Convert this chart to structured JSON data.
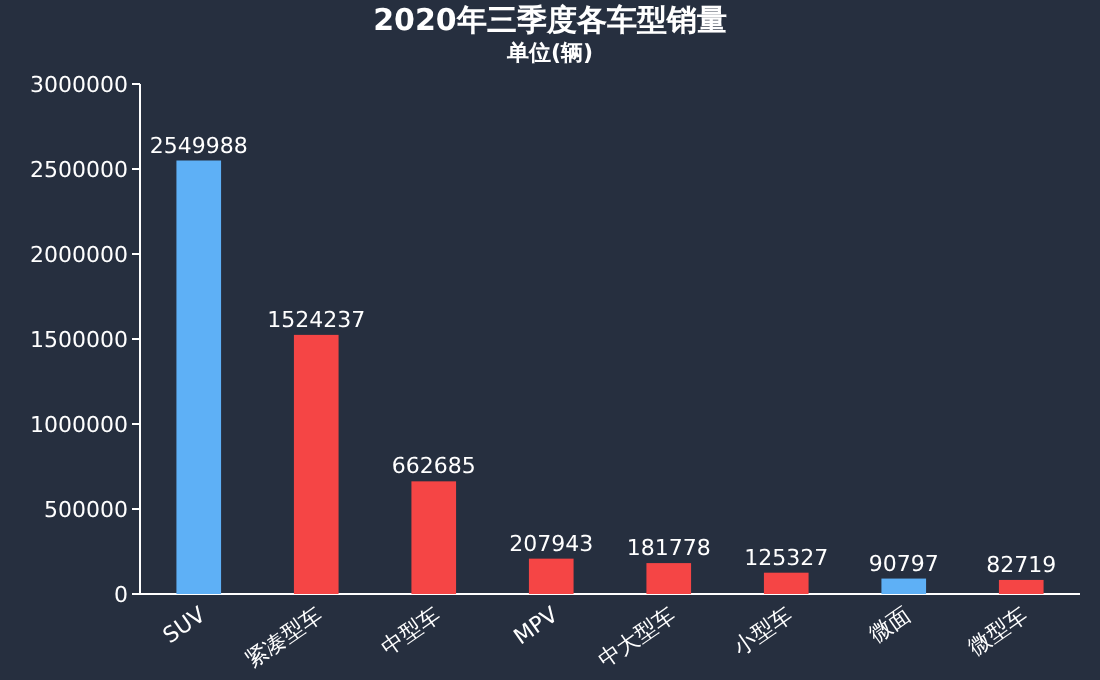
{
  "chart_data": {
    "type": "bar",
    "title": "2020年三季度各车型销量",
    "subtitle": "单位(辆)",
    "categories": [
      "SUV",
      "紧凑型车",
      "中型车",
      "MPV",
      "中大型车",
      "小型车",
      "微面",
      "微型车"
    ],
    "values": [
      2549988,
      1524237,
      662685,
      207943,
      181778,
      125327,
      90797,
      82719
    ],
    "colors": [
      "#5eb0f6",
      "#f54545",
      "#f54545",
      "#f54545",
      "#f54545",
      "#f54545",
      "#5eb0f6",
      "#f54545"
    ],
    "ylim": [
      0,
      3000000
    ],
    "yticks": [
      0,
      500000,
      1000000,
      1500000,
      2000000,
      2500000,
      3000000
    ],
    "data_labels": true
  }
}
